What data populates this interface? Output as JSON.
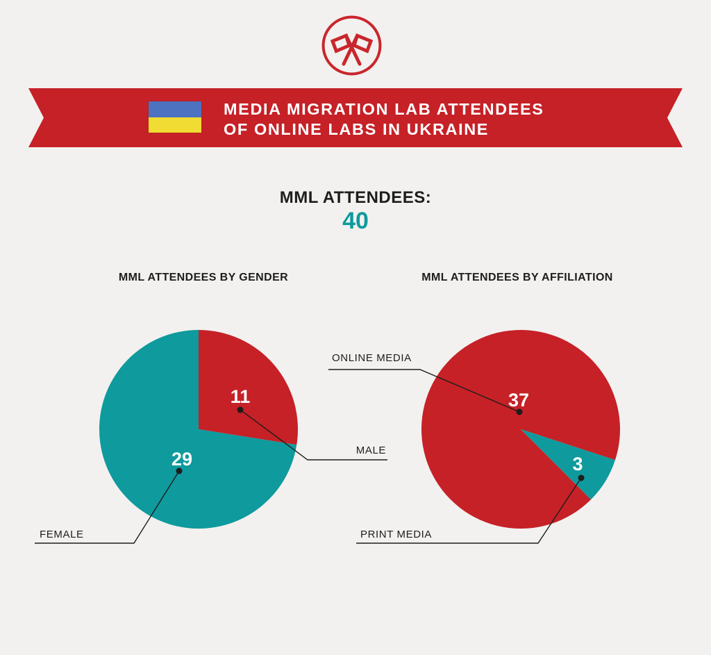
{
  "page": {
    "background": "#f2f1ef",
    "accent_red": "#c52127",
    "accent_teal": "#0f9a9d",
    "text_color": "#1d1d1b"
  },
  "logo": {
    "icon": "crossed-flags-icon",
    "color": "#c9262c"
  },
  "banner": {
    "title_line1": "MEDIA MIGRATION LAB ATTENDEES",
    "title_line2": "OF ONLINE LABS IN UKRAINE",
    "background": "#c52127",
    "flag": {
      "name": "ukraine-flag",
      "blue": "#4d72c0",
      "yellow": "#f1dc33"
    }
  },
  "summary": {
    "label": "MML ATTENDEES:",
    "value": "40",
    "value_color": "#0f9a9d"
  },
  "chart_data": [
    {
      "type": "pie",
      "title": "MML ATTENDEES BY GENDER",
      "total": 40,
      "start_angle_deg": 0,
      "direction": "clockwise",
      "slices": [
        {
          "label": "MALE",
          "value": 11,
          "color": "#c52127"
        },
        {
          "label": "FEMALE",
          "value": 29,
          "color": "#0f9a9d"
        }
      ]
    },
    {
      "type": "pie",
      "title": "MML ATTENDEES BY AFFILIATION",
      "total": 40,
      "start_angle_deg": 135,
      "direction": "clockwise",
      "slices": [
        {
          "label": "ONLINE MEDIA",
          "value": 37,
          "color": "#c52127"
        },
        {
          "label": "PRINT MEDIA",
          "value": 3,
          "color": "#0f9a9d"
        }
      ]
    }
  ]
}
